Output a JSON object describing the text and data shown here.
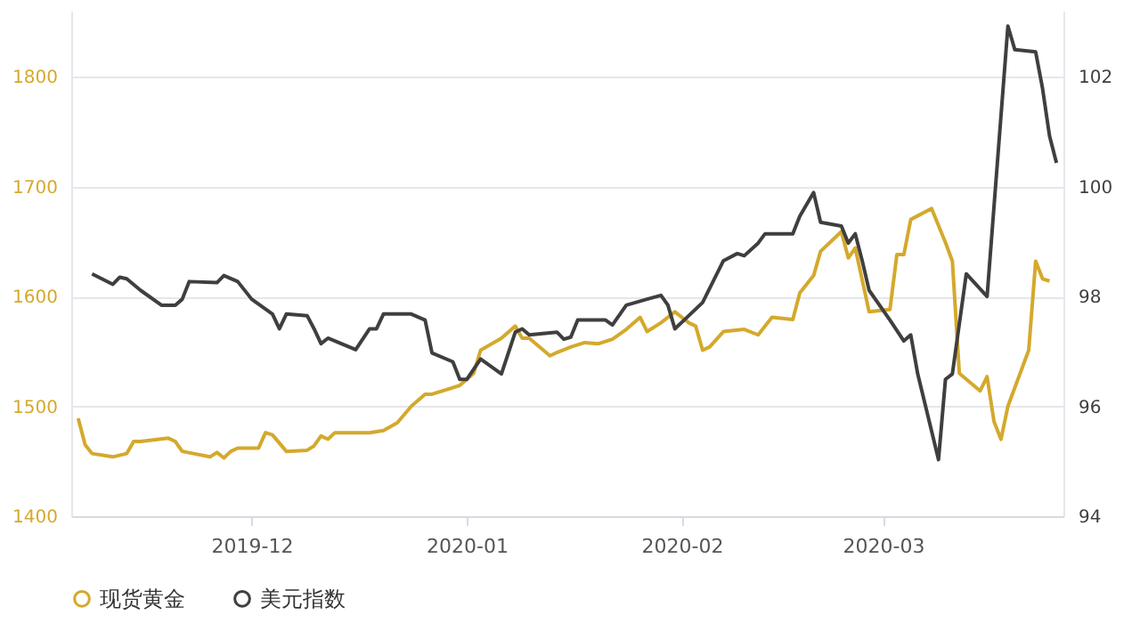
{
  "chart_data": {
    "type": "line",
    "xlim": [
      "2019-11-05",
      "2020-03-27"
    ],
    "xticks": [
      "2019-12",
      "2020-01",
      "2020-02",
      "2020-03"
    ],
    "ylim": [
      1400,
      1860
    ],
    "yticks": [
      1400,
      1500,
      1600,
      1700,
      1800
    ],
    "y2lim": [
      94,
      103.2
    ],
    "y2ticks": [
      94,
      96,
      98,
      100,
      102
    ],
    "grid": "y",
    "legend": "bottom",
    "series": [
      {
        "name": "现货黄金",
        "color": "#d4a92c",
        "x": [
          "2019-11-06",
          "2019-11-07",
          "2019-11-08",
          "2019-11-11",
          "2019-11-13",
          "2019-11-14",
          "2019-11-15",
          "2019-11-19",
          "2019-11-20",
          "2019-11-21",
          "2019-11-25",
          "2019-11-26",
          "2019-11-27",
          "2019-11-28",
          "2019-11-29",
          "2019-12-02",
          "2019-12-03",
          "2019-12-04",
          "2019-12-06",
          "2019-12-09",
          "2019-12-10",
          "2019-12-11",
          "2019-12-12",
          "2019-12-13",
          "2019-12-18",
          "2019-12-20",
          "2019-12-22",
          "2019-12-24",
          "2019-12-26",
          "2019-12-27",
          "2019-12-31",
          "2020-01-02",
          "2020-01-03",
          "2020-01-06",
          "2020-01-08",
          "2020-01-09",
          "2020-01-10",
          "2020-01-13",
          "2020-01-14",
          "2020-01-16",
          "2020-01-18",
          "2020-01-20",
          "2020-01-22",
          "2020-01-24",
          "2020-01-26",
          "2020-01-27",
          "2020-01-29",
          "2020-01-31",
          "2020-02-02",
          "2020-02-03",
          "2020-02-04",
          "2020-02-05",
          "2020-02-07",
          "2020-02-10",
          "2020-02-12",
          "2020-02-14",
          "2020-02-17",
          "2020-02-18",
          "2020-02-20",
          "2020-02-21",
          "2020-02-24",
          "2020-02-25",
          "2020-02-26",
          "2020-02-28",
          "2020-03-02",
          "2020-03-03",
          "2020-03-04",
          "2020-03-05",
          "2020-03-08",
          "2020-03-10",
          "2020-03-11",
          "2020-03-12",
          "2020-03-15",
          "2020-03-16",
          "2020-03-17",
          "2020-03-18",
          "2020-03-19",
          "2020-03-22",
          "2020-03-23",
          "2020-03-24",
          "2020-03-25"
        ],
        "values": [
          1489,
          1465,
          1457,
          1454,
          1457,
          1468,
          1468,
          1471,
          1468,
          1459,
          1454,
          1458,
          1453,
          1459,
          1462,
          1462,
          1476,
          1474,
          1459,
          1460,
          1464,
          1473,
          1470,
          1476,
          1476,
          1478,
          1485,
          1500,
          1511,
          1511,
          1519,
          1530,
          1551,
          1562,
          1573,
          1562,
          1562,
          1546,
          1549,
          1554,
          1558,
          1557,
          1561,
          1570,
          1581,
          1568,
          1576,
          1586,
          1576,
          1573,
          1551,
          1554,
          1568,
          1570,
          1565,
          1581,
          1579,
          1603,
          1619,
          1641,
          1659,
          1635,
          1644,
          1586,
          1588,
          1638,
          1638,
          1670,
          1680,
          1649,
          1632,
          1530,
          1514,
          1527,
          1486,
          1470,
          1500,
          1551,
          1632,
          1616,
          1614
        ]
      },
      {
        "name": "美元指数",
        "color": "#3f3f3f",
        "axis": "y2",
        "x": [
          "2019-11-08",
          "2019-11-11",
          "2019-11-12",
          "2019-11-13",
          "2019-11-15",
          "2019-11-18",
          "2019-11-20",
          "2019-11-21",
          "2019-11-22",
          "2019-11-26",
          "2019-11-27",
          "2019-11-29",
          "2019-12-01",
          "2019-12-04",
          "2019-12-05",
          "2019-12-06",
          "2019-12-09",
          "2019-12-10",
          "2019-12-11",
          "2019-12-12",
          "2019-12-13",
          "2019-12-16",
          "2019-12-18",
          "2019-12-19",
          "2019-12-20",
          "2019-12-24",
          "2019-12-26",
          "2019-12-27",
          "2019-12-30",
          "2019-12-31",
          "2020-01-01",
          "2020-01-03",
          "2020-01-06",
          "2020-01-08",
          "2020-01-09",
          "2020-01-10",
          "2020-01-14",
          "2020-01-15",
          "2020-01-16",
          "2020-01-17",
          "2020-01-21",
          "2020-01-22",
          "2020-01-24",
          "2020-01-27",
          "2020-01-29",
          "2020-01-30",
          "2020-01-31",
          "2020-02-04",
          "2020-02-07",
          "2020-02-09",
          "2020-02-10",
          "2020-02-12",
          "2020-02-13",
          "2020-02-17",
          "2020-02-18",
          "2020-02-20",
          "2020-02-21",
          "2020-02-24",
          "2020-02-25",
          "2020-02-26",
          "2020-02-27",
          "2020-02-28",
          "2020-03-02",
          "2020-03-04",
          "2020-03-05",
          "2020-03-06",
          "2020-03-09",
          "2020-03-10",
          "2020-03-11",
          "2020-03-13",
          "2020-03-16",
          "2020-03-19",
          "2020-03-20",
          "2020-03-23",
          "2020-03-24",
          "2020-03-25",
          "2020-03-26"
        ],
        "values": [
          98.41,
          98.22,
          98.35,
          98.32,
          98.11,
          97.84,
          97.84,
          97.95,
          98.27,
          98.25,
          98.38,
          98.27,
          97.95,
          97.68,
          97.41,
          97.68,
          97.65,
          97.41,
          97.14,
          97.24,
          97.19,
          97.03,
          97.41,
          97.41,
          97.68,
          97.68,
          97.57,
          96.97,
          96.81,
          96.49,
          96.49,
          96.86,
          96.59,
          97.35,
          97.41,
          97.3,
          97.35,
          97.22,
          97.26,
          97.57,
          97.57,
          97.48,
          97.84,
          97.95,
          98.02,
          97.84,
          97.41,
          97.89,
          98.65,
          98.78,
          98.74,
          98.97,
          99.14,
          99.14,
          99.46,
          99.89,
          99.35,
          99.28,
          98.97,
          99.14,
          98.65,
          98.11,
          97.57,
          97.19,
          97.3,
          96.59,
          95.03,
          96.49,
          96.59,
          98.41,
          98.0,
          102.92,
          102.49,
          102.45,
          101.78,
          100.92,
          100.43
        ]
      }
    ]
  }
}
